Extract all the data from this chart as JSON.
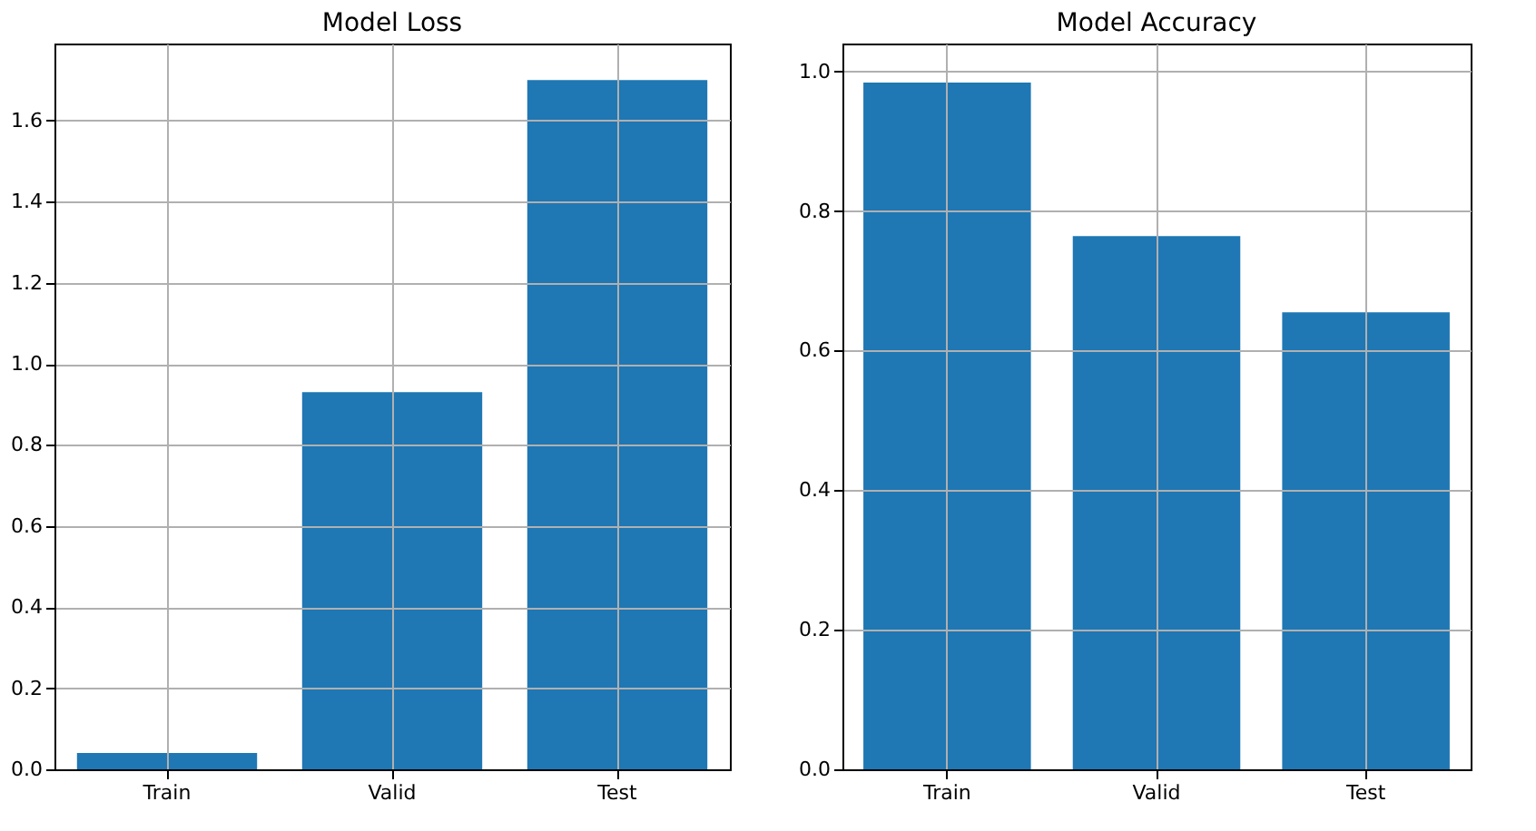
{
  "chart_data": [
    {
      "type": "bar",
      "title": "Model Loss",
      "categories": [
        "Train",
        "Valid",
        "Test"
      ],
      "values": [
        0.04,
        0.93,
        1.7
      ],
      "color": "#1f77b4",
      "ylim": [
        0,
        1.79
      ],
      "yticks": [
        {
          "value": 0,
          "label": "0.0"
        },
        0.2,
        0.4,
        0.6,
        0.8,
        {
          "value": 1,
          "label": "1.0"
        },
        1.2,
        1.4,
        1.6
      ],
      "grid": true
    },
    {
      "type": "bar",
      "title": "Model Accuracy",
      "categories": [
        "Train",
        "Valid",
        "Test"
      ],
      "values": [
        0.984,
        0.764,
        0.655
      ],
      "color": "#1f77b4",
      "ylim": [
        0,
        1.04
      ],
      "yticks": [
        {
          "value": 0,
          "label": "0.0"
        },
        0.2,
        0.4,
        0.6,
        0.8,
        {
          "value": 1,
          "label": "1.0"
        }
      ],
      "grid": true
    }
  ]
}
